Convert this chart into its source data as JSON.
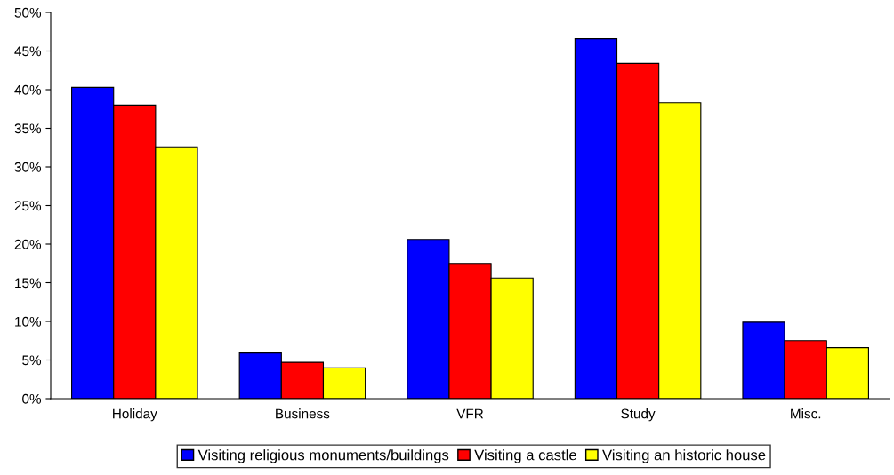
{
  "chart_data": {
    "type": "bar",
    "categories": [
      "Holiday",
      "Business",
      "VFR",
      "Study",
      "Misc."
    ],
    "series": [
      {
        "name": "Visiting religious monuments/buildings",
        "color": "#0000ff",
        "values": [
          40.3,
          5.9,
          20.6,
          46.6,
          9.9
        ]
      },
      {
        "name": "Visiting a castle",
        "color": "#ff0000",
        "values": [
          38.0,
          4.7,
          17.5,
          43.4,
          7.5
        ]
      },
      {
        "name": "Visiting an historic house",
        "color": "#ffff00",
        "values": [
          32.5,
          4.0,
          15.6,
          38.3,
          6.6
        ]
      }
    ],
    "ylim": [
      0,
      50
    ],
    "yticks": [
      {
        "value": 0,
        "label": "0%"
      },
      {
        "value": 5,
        "label": "5%"
      },
      {
        "value": 10,
        "label": "10%"
      },
      {
        "value": 15,
        "label": "15%"
      },
      {
        "value": 20,
        "label": "20%"
      },
      {
        "value": 25,
        "label": "25%"
      },
      {
        "value": 30,
        "label": "30%"
      },
      {
        "value": 35,
        "label": "35%"
      },
      {
        "value": 40,
        "label": "40%"
      },
      {
        "value": 45,
        "label": "45%"
      },
      {
        "value": 50,
        "label": "50%"
      }
    ],
    "legend": "bottom"
  }
}
